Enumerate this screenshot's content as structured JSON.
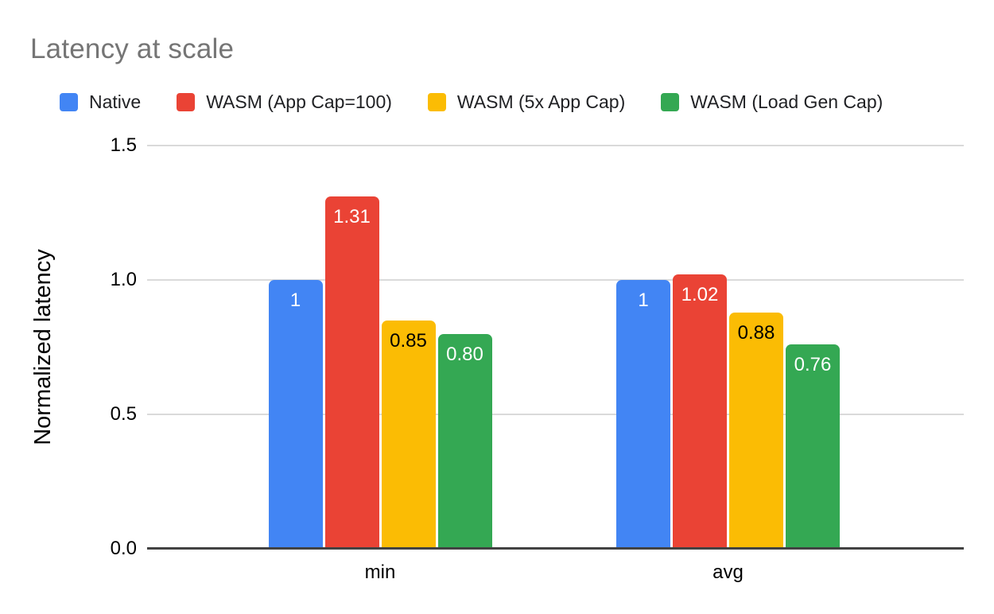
{
  "chart_data": {
    "type": "bar",
    "title": "Latency at scale",
    "ylabel": "Normalized latency",
    "xlabel": "",
    "categories": [
      "min",
      "avg"
    ],
    "series": [
      {
        "name": "Native",
        "color": "#4285F4",
        "values": [
          1.0,
          1.0
        ],
        "labels": [
          "1",
          "1"
        ],
        "label_color": "#ffffff"
      },
      {
        "name": "WASM (App Cap=100)",
        "color": "#EA4335",
        "values": [
          1.31,
          1.02
        ],
        "labels": [
          "1.31",
          "1.02"
        ],
        "label_color": "#ffffff"
      },
      {
        "name": "WASM (5x App Cap)",
        "color": "#FBBC04",
        "values": [
          0.85,
          0.88
        ],
        "labels": [
          "0.85",
          "0.88"
        ],
        "label_color": "#000000"
      },
      {
        "name": "WASM (Load Gen Cap)",
        "color": "#34A853",
        "values": [
          0.8,
          0.76
        ],
        "labels": [
          "0.80",
          "0.76"
        ],
        "label_color": "#ffffff"
      }
    ],
    "ylim": [
      0,
      1.5
    ],
    "yticks": [
      {
        "value": 0.0,
        "label": "0.0"
      },
      {
        "value": 0.5,
        "label": "0.5"
      },
      {
        "value": 1.0,
        "label": "1.0"
      },
      {
        "value": 1.5,
        "label": "1.5"
      }
    ],
    "grid": true,
    "legend_position": "top",
    "colors": {
      "title_text": "#757575",
      "gridline": "#DADADA",
      "axis_line": "#424242",
      "tick_text": "#000000",
      "legend_text": "#202124"
    }
  }
}
